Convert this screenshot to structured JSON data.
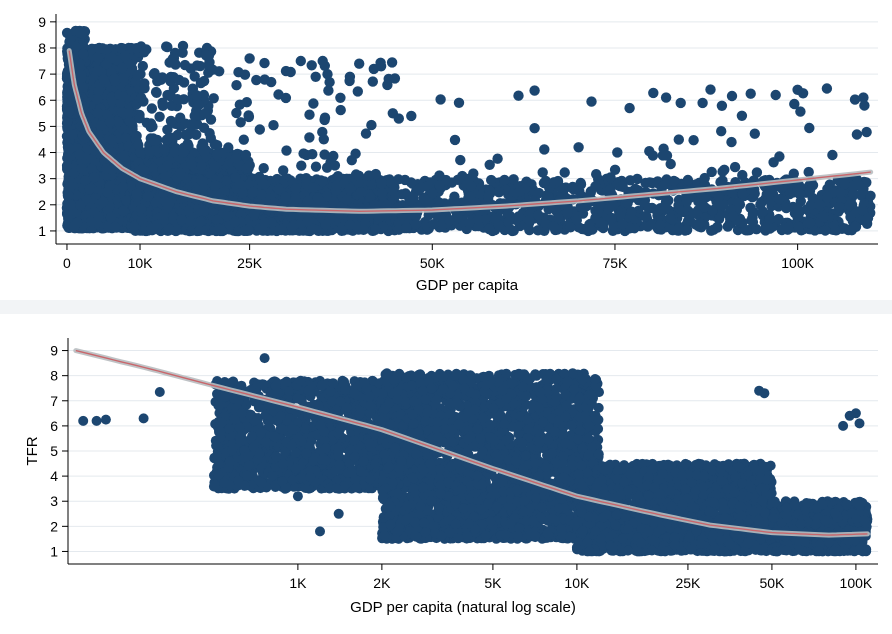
{
  "colors": {
    "points": "#1c4670",
    "fit_line": "#c8666b",
    "fit_band": "#b8bcc0",
    "grid": "#e4e9ee",
    "panel_gap": "#f2f4f6"
  },
  "chart_data": [
    {
      "type": "scatter",
      "name": "top",
      "title": "",
      "xlabel": "GDP per capita",
      "ylabel": "",
      "x_scale": "linear",
      "xlim": [
        -1500,
        111000
      ],
      "ylim": [
        0.5,
        9.3
      ],
      "x_ticks": [
        0,
        10000,
        25000,
        50000,
        75000,
        100000
      ],
      "x_tick_labels": [
        "0",
        "10K",
        "25K",
        "50K",
        "75K",
        "100K"
      ],
      "y_ticks": [
        1,
        2,
        3,
        4,
        5,
        6,
        7,
        8,
        9
      ],
      "y_tick_labels": [
        "1",
        "2",
        "3",
        "4",
        "5",
        "6",
        "7",
        "8",
        "9"
      ],
      "grid": true,
      "fit_line": {
        "label": "fitted curve with confidence band",
        "points": [
          [
            300,
            7.9
          ],
          [
            1000,
            6.6
          ],
          [
            2000,
            5.5
          ],
          [
            3000,
            4.8
          ],
          [
            5000,
            4.0
          ],
          [
            7500,
            3.4
          ],
          [
            10000,
            3.0
          ],
          [
            15000,
            2.5
          ],
          [
            20000,
            2.15
          ],
          [
            25000,
            1.95
          ],
          [
            30000,
            1.83
          ],
          [
            40000,
            1.75
          ],
          [
            50000,
            1.8
          ],
          [
            60000,
            1.95
          ],
          [
            70000,
            2.15
          ],
          [
            80000,
            2.4
          ],
          [
            90000,
            2.65
          ],
          [
            100000,
            2.95
          ],
          [
            110000,
            3.25
          ]
        ]
      },
      "point_clusters": [
        {
          "x": [
            0,
            9000
          ],
          "y": [
            1.1,
            8.0
          ],
          "n": 3200
        },
        {
          "x": [
            0,
            2500
          ],
          "y": [
            5.5,
            8.7
          ],
          "n": 300
        },
        {
          "x": [
            9000,
            25000
          ],
          "y": [
            1.0,
            4.0
          ],
          "n": 1500
        },
        {
          "x": [
            9000,
            20000
          ],
          "y": [
            4.0,
            8.1
          ],
          "n": 160
        },
        {
          "x": [
            20000,
            45000
          ],
          "y": [
            1.0,
            3.0
          ],
          "n": 1300
        },
        {
          "x": [
            20000,
            45000
          ],
          "y": [
            3.0,
            7.5
          ],
          "n": 80
        },
        {
          "x": [
            45000,
            110000
          ],
          "y": [
            1.0,
            3.0
          ],
          "n": 900
        },
        {
          "x": [
            45000,
            110000
          ],
          "y": [
            3.0,
            6.5
          ],
          "n": 60
        }
      ],
      "notable_points": [
        [
          40000,
          7.4
        ],
        [
          42000,
          7.2
        ],
        [
          43000,
          7.3
        ],
        [
          44500,
          7.45
        ],
        [
          25000,
          7.6
        ],
        [
          32000,
          7.5
        ],
        [
          35000,
          7.5
        ],
        [
          97000,
          6.2
        ],
        [
          100000,
          6.4
        ],
        [
          104000,
          6.45
        ],
        [
          109000,
          6.1
        ],
        [
          82000,
          6.1
        ],
        [
          84000,
          5.9
        ],
        [
          87000,
          5.9
        ],
        [
          77000,
          5.7
        ]
      ]
    },
    {
      "type": "scatter",
      "name": "bottom",
      "title": "",
      "xlabel": "GDP per capita (natural log scale)",
      "ylabel": "TFR",
      "x_scale": "log",
      "xlim": [
        150,
        120000
      ],
      "ylim": [
        0.5,
        9.5
      ],
      "x_ticks": [
        1000,
        2000,
        5000,
        10000,
        25000,
        50000,
        100000
      ],
      "x_tick_labels": [
        "1K",
        "2K",
        "5K",
        "10K",
        "25K",
        "50K",
        "100K"
      ],
      "y_ticks": [
        1,
        2,
        3,
        4,
        5,
        6,
        7,
        8,
        9
      ],
      "y_tick_labels": [
        "1",
        "2",
        "3",
        "4",
        "5",
        "6",
        "7",
        "8",
        "9"
      ],
      "grid": true,
      "fit_line": {
        "label": "fitted curve with confidence band",
        "points": [
          [
            160,
            9.0
          ],
          [
            300,
            8.25
          ],
          [
            500,
            7.6
          ],
          [
            1000,
            6.75
          ],
          [
            2000,
            5.85
          ],
          [
            5000,
            4.3
          ],
          [
            10000,
            3.2
          ],
          [
            20000,
            2.45
          ],
          [
            30000,
            2.05
          ],
          [
            50000,
            1.75
          ],
          [
            80000,
            1.65
          ],
          [
            110000,
            1.7
          ]
        ]
      },
      "point_clusters": [
        {
          "x": [
            500,
            3000
          ],
          "y": [
            3.5,
            7.8
          ],
          "n": 1700
        },
        {
          "x": [
            2000,
            12000
          ],
          "y": [
            1.5,
            8.1
          ],
          "n": 2700
        },
        {
          "x": [
            10000,
            50000
          ],
          "y": [
            1.0,
            4.5
          ],
          "n": 2000
        },
        {
          "x": [
            50000,
            110000
          ],
          "y": [
            1.0,
            3.0
          ],
          "n": 700
        }
      ],
      "notable_points": [
        [
          170,
          6.2
        ],
        [
          190,
          6.2
        ],
        [
          205,
          6.25
        ],
        [
          280,
          6.3
        ],
        [
          320,
          7.35
        ],
        [
          760,
          8.7
        ],
        [
          1000,
          3.2
        ],
        [
          1200,
          1.8
        ],
        [
          1400,
          2.5
        ],
        [
          45000,
          7.4
        ],
        [
          47000,
          7.3
        ],
        [
          90000,
          6.0
        ],
        [
          95000,
          6.4
        ],
        [
          100000,
          6.5
        ],
        [
          103000,
          6.1
        ]
      ]
    }
  ]
}
